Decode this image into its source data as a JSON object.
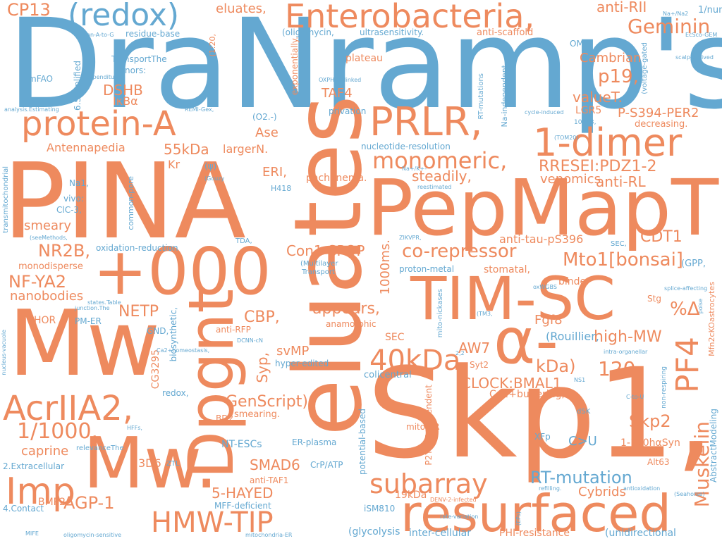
{
  "colors": {
    "orange": "#ee8a5e",
    "blue": "#64a8d1",
    "background": "#ffffff"
  },
  "words": {
    "w_dranramps": "DraNramp's",
    "w_pina": "PINA",
    "w_eluates": "eluates",
    "w_skp1": "Skp1,",
    "w_pepmaptm": "PepMapTM",
    "w_mw": "Mw",
    "w_mw2": "Mw.",
    "w_dpgnt": "Dpgnt",
    "w_tim_sc": "TIM-SC",
    "w_plus000": "+000",
    "w_resurfaced": "resurfaced",
    "w_alpha": "α-",
    "w_enterobacteria": "Enterobacteria,",
    "w_redox": "(redox)",
    "w_protein_a": "protein-A",
    "w_prlr": "PRLR,",
    "w_1dimer": "1-dimer",
    "w_monomeric": "monomeric,",
    "w_acriia2": "AcrIIA2,",
    "w_imp": "Imp",
    "w_hmw_tip": "HMW-TIP",
    "w_subarray": "subarray",
    "w_40kda": "40kDa",
    "w_pf4": "PF4",
    "w_muskelin": "Muskelin",
    "w_cp13": "CP13",
    "w_eluates2": "eluates,",
    "w_antirii": "anti-RII",
    "w_geminin": "Geminin",
    "w_1number": "1/number",
    "w_nana2": "Na+/Na2",
    "w_ecsco": "EcSco-GEM",
    "w_om1": "OM1,",
    "w_cambrian": "Cambrian",
    "w_voltage": "(voltage-gated",
    "w_scalp": "scalp-derived",
    "w_p19": "p19,",
    "w_valuet": "valueT.",
    "w_ps394": "P-S394-PER2",
    "w_lgr5": "LGR5",
    "w_decreasing": "decreasing.",
    "w_10413": "10413,",
    "w_tom20": "(TOM20)",
    "w_antirl": "anti-RL",
    "w_rreseipdz": "RRESEI:PDZ1-2",
    "w_venomics": "venomics",
    "w_antitau": "anti-tau-pS396",
    "w_cdt1": "CDT1",
    "w_mto1": "Mto1[bonsai]",
    "w_sec": "SEC,",
    "w_gpp": "(GPP,",
    "w_stg": "Stg",
    "w_poise": "poise",
    "w_pctdelta": "%Δ",
    "w_fgf8": "Fgf8",
    "w_highmw": "high-MW",
    "w_120": "120",
    "w_rouillier": "(Rouillier,",
    "w_intraorg": "intra-organellar",
    "w_kda": "kDa)",
    "w_ns1": "NS1",
    "w_ctou": "C-to-U",
    "w_nonresp": "non-respiring",
    "w_skp2": "Skp2",
    "w_dsk": "dSK",
    "w_cu": "C>U",
    "w_xfp": "XFp",
    "w_1120": "1-120hαSyn",
    "w_alt63": "Alt63",
    "w_rtmutation": "RT-mutation",
    "w_cybrids": "Cybrids",
    "w_refilling": "refilling.",
    "w_antiox": "antioxidation",
    "w_seahorse": "(Seahorse)",
    "w_unidirectional": "(unidirectional",
    "w_phires": "PHI-resistance",
    "w_abstract": "AbstractModeling",
    "w_mfn2": "Mfn2cKOastrocytes",
    "w_splice": "splice-affecting",
    "w_binder": "binder",
    "w_stomatal": "stomatal,",
    "w_protonmetal": "proton-metal",
    "w_oxwgbs": "oxWGBS",
    "w_1000ms": "1000ms.",
    "w_corepressor": "co-repressor",
    "w_con1spop": "Con1-SPOP",
    "w_multilayer": "(Multilayer",
    "w_transport": "Transport",
    "w_appears": "appears,",
    "w_anamorphic": "anamorphic",
    "w_sec2": "SEC",
    "w_ntsfig": "(TM3,",
    "w_mitonick": "mito-nickases",
    "w_syt2": "Syt2",
    "w_aw7": "AW7",
    "w_clockbmal": "CLOCK:BMAL1",
    "w_ca2buff": "Ca2+buffering,",
    "w_22": "2,2",
    "w_colicentral": "colicentral",
    "w_mitoer": "mito-ER",
    "w_p2y12r": "P2Y12R-dependent",
    "w_potential": "potential-based",
    "w_erplasma": "ER-plasma",
    "w_crpatp": "CrP/ATP",
    "w_denv2": "DENV-2-infected",
    "w_ism810": "iSM810",
    "w_19kda": "19kDa",
    "w_ratevar": "rate-variation",
    "w_glycolysis": "(glycolysis",
    "w_intercell": "inter-cellular",
    "w_eps": "(EPs)",
    "w_mitoer2": "mitochondria-ER",
    "w_mffdef": "MFF-deficient",
    "w_5hayed": "5-HAYED",
    "w_antitaf1": "anti-TAF1",
    "w_smad6": "SMAD6",
    "w_ntescs": "NT-ESCs",
    "w_agp1": "AGP-1",
    "w_bmp2": "BMP2",
    "w_mife": "MIFE",
    "w_4contact": "4.Contact",
    "w_oligosens": "oligomycin-sensitive",
    "w_2extra": "2.Extracellular",
    "w_hffs": "HFFs,",
    "w_relevance": "relevanceThe",
    "w_ztl": "ZTL",
    "w_3d6": "3D6",
    "w_caprine": "caprine",
    "w_11000": "1/1000.",
    "w_bd2": "BD2",
    "w_smearing": "smearing.",
    "w_genscript": "GenScript)",
    "w_redox2": "redox,",
    "w_ca2homeo": "Ca2+homeostasis,",
    "w_biosynth": "biosynthetic,",
    "w_cg3295": "CG3295",
    "w_antirfp": "anti-RFP",
    "w_dcnncn": "DCNN-cN",
    "w_hyperedited": "hyper-edited",
    "w_svmp": "svMP",
    "w_syp": "Syp,",
    "w_cbp": "CBP,",
    "w_gnd": "GND,",
    "w_netp": "NETP",
    "w_pmer": "PM-ER",
    "w_hor": "HOR",
    "w_nucleusvac": "nucleus-vacuole",
    "w_junction": "junction.The",
    "w_statestable": "states.Table",
    "w_nanobodies": "nanobodies",
    "w_nfya2": "NF-YA2",
    "w_monodisperse": "monodisperse",
    "w_nr2b": "NR2B,",
    "w_oxred": "oxidation-reduction",
    "w_tda": "TDA,",
    "w_seemethods": "(seeMethods,",
    "w_smeary": "smeary",
    "w_clc3": "ClC-3,",
    "w_vivo": "vivo:",
    "w_na1": "Na1,",
    "w_commonpore": "common-pore",
    "w_transmito": "transmitochondrial",
    "w_gouzy": "(Gouzy",
    "w_psi": "(ψ)",
    "w_kr": "Kr",
    "w_eri": "ERI,",
    "w_h418": "H418",
    "w_pachynema": "pachynema.",
    "w_steadily": "steadily,",
    "w_nakplus": "Na+/K+-",
    "w_reestimated": "reestimated",
    "w_zikvpr": "ZIKVPR,",
    "w_antennapedia": "Antennapedia",
    "w_55kda": "55kDa",
    "w_largern": "largerN.",
    "w_nucleotide": "nucleotide-resolution",
    "w_ase": "Ase",
    "w_o2": "(O2.-)",
    "w_privation": "privation",
    "w_dshb": "DSHB",
    "w_ikba": "IκBα",
    "w_taf4": "TAF4",
    "w_rtmut2": "RT-mutations",
    "w_naindep": "Na-independent",
    "w_cycleinduced": "cycle-induced",
    "w_oxphos": "OXPHOS-linked",
    "w_expon": "exponentially.",
    "w_plateau": "plateau",
    "w_antiscaffold": "anti-scaffold",
    "w_ultrasens": "ultrasensitivity.",
    "w_oligomycin": "(oligomycin,",
    "w_120paren": "(1:20,",
    "w_residue": "residue-base",
    "w_nonatog": "non-A-to-G",
    "w_transportthe": "TransportThe",
    "w_donors": "donors:",
    "w_expend": "expenditures",
    "w_mfao": "mFAO",
    "w_6simp": "6.Simplified",
    "w_analysis": "analysis.Estimating",
    "w_remigex": "REMI-Gex,"
  }
}
